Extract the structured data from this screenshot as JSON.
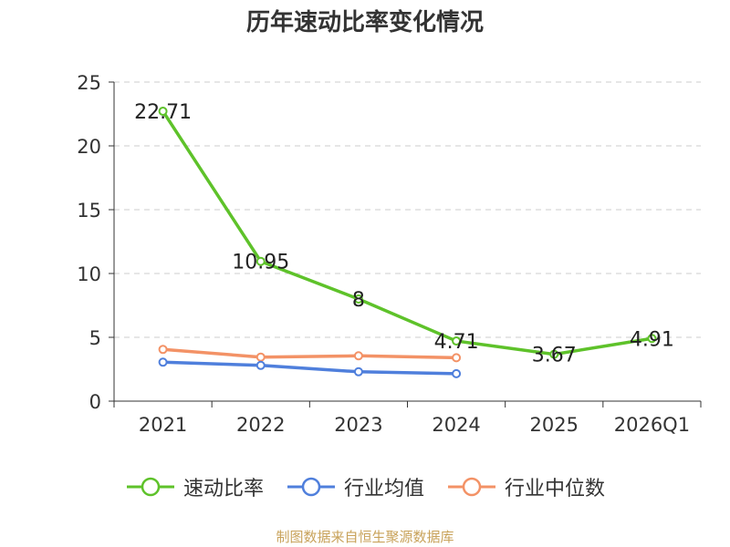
{
  "chart_data": {
    "type": "line",
    "title": "历年速动比率变化情况",
    "categories": [
      "2021",
      "2022",
      "2023",
      "2024",
      "2025",
      "2026Q1"
    ],
    "ylim": [
      0,
      25
    ],
    "yticks": [
      0,
      5,
      10,
      15,
      20,
      25
    ],
    "grid": true,
    "legend_position": "bottom",
    "series": [
      {
        "name": "速动比率",
        "color": "#5ec22a",
        "values": [
          22.71,
          10.95,
          8,
          4.71,
          3.67,
          4.91
        ],
        "labels": [
          "22.71",
          "10.95",
          "8",
          "4.71",
          "3.67",
          "4.91"
        ]
      },
      {
        "name": "行业均值",
        "color": "#4f7fdc",
        "values": [
          3.05,
          2.8,
          2.3,
          2.15,
          null,
          null
        ]
      },
      {
        "name": "行业中位数",
        "color": "#f39266",
        "values": [
          4.05,
          3.45,
          3.55,
          3.4,
          null,
          null
        ]
      }
    ]
  },
  "source": "制图数据来自恒生聚源数据库"
}
